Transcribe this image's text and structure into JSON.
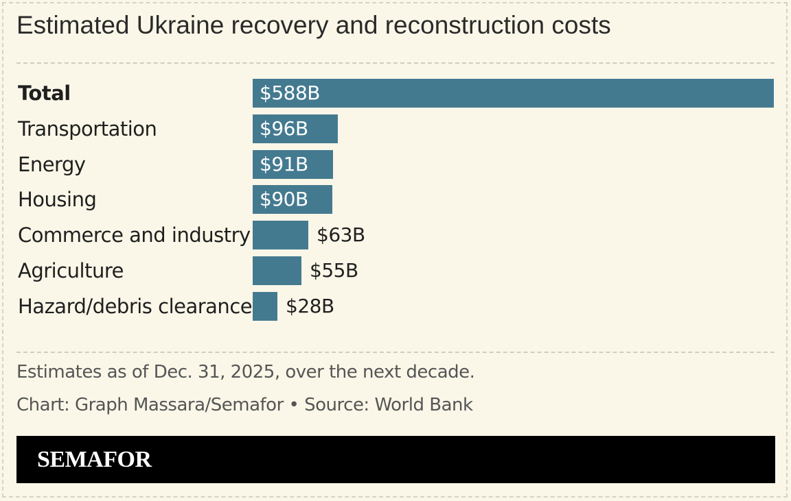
{
  "chart_data": {
    "type": "bar",
    "orientation": "horizontal",
    "title": "Estimated Ukraine recovery and reconstruction costs",
    "categories": [
      "Total",
      "Transportation",
      "Energy",
      "Housing",
      "Commerce and industry",
      "Agriculture",
      "Hazard/debris clearance"
    ],
    "values": [
      588,
      96,
      91,
      90,
      63,
      55,
      28
    ],
    "value_labels": [
      "$588B",
      "$96B",
      "$91B",
      "$90B",
      "$63B",
      "$55B",
      "$28B"
    ],
    "bold_categories": [
      "Total"
    ],
    "bar_color": "#447a90",
    "grid": false
  },
  "note": "Estimates as of Dec. 31, 2025, over the next decade.",
  "credit": "Chart: Graph Massara/Semafor • Source: World Bank",
  "footer": {
    "logo": "SEMAFOR"
  }
}
